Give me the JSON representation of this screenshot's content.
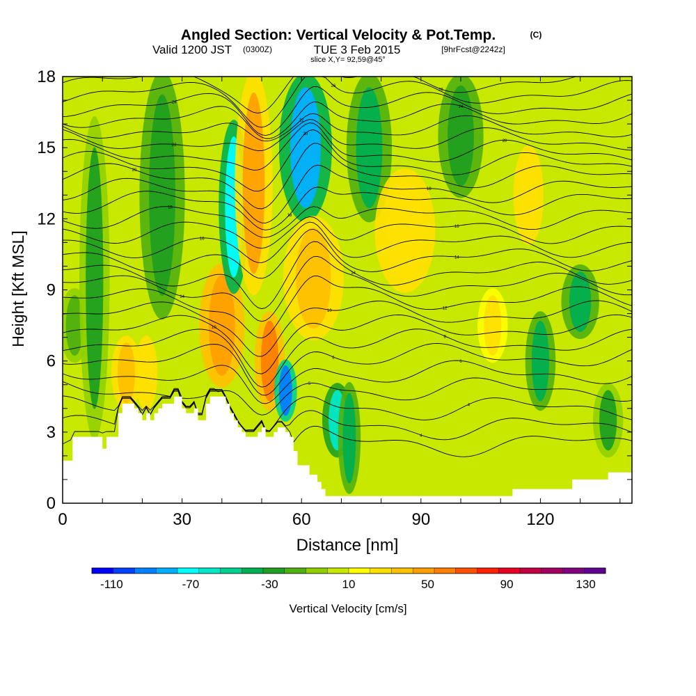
{
  "chart_data": {
    "type": "heatmap",
    "title": "Angled Section: Vertical Velocity & Pot.Temp.",
    "title_unit": "(C)",
    "subtitle_pre": "Valid 1200 JST",
    "subtitle_zulu": "(0300Z)",
    "subtitle_date": "TUE 3 Feb 2015",
    "subtitle_fcst": "[9hrFcst@2242z]",
    "slice_label": "slice X,Y= 92,59@45°",
    "xlabel": "Distance [nm]",
    "ylabel": "Height [Kft MSL]",
    "xlim": [
      0,
      143
    ],
    "ylim": [
      0,
      18
    ],
    "x_ticks": [
      0,
      30,
      60,
      90,
      120
    ],
    "y_ticks": [
      0,
      3,
      6,
      9,
      12,
      15,
      18
    ],
    "colorbar": {
      "label": "Vertical Velocity [cm/s]",
      "ticks": [
        -110,
        -70,
        -30,
        10,
        50,
        90,
        130
      ],
      "colors": [
        "#0000ff",
        "#0040ff",
        "#0080ff",
        "#00b0ff",
        "#00ffff",
        "#00e8c8",
        "#00d090",
        "#00b050",
        "#20a020",
        "#50b010",
        "#90d000",
        "#c8e800",
        "#ffff00",
        "#ffe000",
        "#ffc000",
        "#ffa000",
        "#ff8000",
        "#ff5000",
        "#ff2000",
        "#e80020",
        "#c00040",
        "#a00060",
        "#800080",
        "#600090"
      ]
    },
    "velocity_columns": [
      {
        "x": 3,
        "w": 2,
        "v": -20,
        "zmin": 6,
        "zmax": 9
      },
      {
        "x": 8,
        "w": 2,
        "v": -25,
        "zmin": 3,
        "zmax": 16
      },
      {
        "x": 16,
        "w": 2,
        "v": 40,
        "zmin": 4,
        "zmax": 7
      },
      {
        "x": 21,
        "w": 1.5,
        "v": 30,
        "zmin": 4,
        "zmax": 7
      },
      {
        "x": 25,
        "w": 3,
        "v": -30,
        "zmin": 8,
        "zmax": 18
      },
      {
        "x": 40,
        "w": 3,
        "v": 50,
        "zmin": 5,
        "zmax": 10
      },
      {
        "x": 43,
        "w": 2,
        "v": -70,
        "zmin": 9,
        "zmax": 16
      },
      {
        "x": 48,
        "w": 2.5,
        "v": 45,
        "zmin": 9,
        "zmax": 18
      },
      {
        "x": 52,
        "w": 2,
        "v": 55,
        "zmin": 4,
        "zmax": 8
      },
      {
        "x": 56,
        "w": 1.5,
        "v": -90,
        "zmin": 3.5,
        "zmax": 6
      },
      {
        "x": 61,
        "w": 3.5,
        "v": -80,
        "zmin": 12,
        "zmax": 18
      },
      {
        "x": 63,
        "w": 4,
        "v": 40,
        "zmin": 7,
        "zmax": 12
      },
      {
        "x": 69,
        "w": 2,
        "v": -60,
        "zmin": 2,
        "zmax": 5
      },
      {
        "x": 72,
        "w": 1.5,
        "v": -40,
        "zmin": 0.5,
        "zmax": 5
      },
      {
        "x": 77,
        "w": 3,
        "v": -35,
        "zmin": 12,
        "zmax": 18
      },
      {
        "x": 86,
        "w": 4,
        "v": 30,
        "zmin": 9,
        "zmax": 14
      },
      {
        "x": 100,
        "w": 3,
        "v": -30,
        "zmin": 13,
        "zmax": 18
      },
      {
        "x": 108,
        "w": 2,
        "v": 25,
        "zmin": 6,
        "zmax": 9
      },
      {
        "x": 117,
        "w": 2,
        "v": 30,
        "zmin": 11,
        "zmax": 15
      },
      {
        "x": 120,
        "w": 2,
        "v": -40,
        "zmin": 4,
        "zmax": 8
      },
      {
        "x": 130,
        "w": 2.5,
        "v": -35,
        "zmin": 7,
        "zmax": 10
      },
      {
        "x": 137,
        "w": 2,
        "v": -25,
        "zmin": 2,
        "zmax": 5
      }
    ],
    "terrain": [
      [
        0,
        1.8
      ],
      [
        2.5,
        1.8
      ],
      [
        2.5,
        2.8
      ],
      [
        10,
        2.8
      ],
      [
        10,
        2.3
      ],
      [
        11,
        2.3
      ],
      [
        11,
        2.8
      ],
      [
        14,
        2.8
      ],
      [
        14,
        3.5
      ],
      [
        13.5,
        3.5
      ],
      [
        14,
        3.5
      ],
      [
        14,
        3.8
      ],
      [
        15,
        3.8
      ],
      [
        15,
        4.2
      ],
      [
        18,
        4.2
      ],
      [
        18,
        4.0
      ],
      [
        19,
        4.0
      ],
      [
        19,
        3.8
      ],
      [
        20,
        3.8
      ],
      [
        20,
        3.5
      ],
      [
        21,
        3.5
      ],
      [
        21,
        3.8
      ],
      [
        22,
        3.8
      ],
      [
        22,
        3.5
      ],
      [
        23,
        3.5
      ],
      [
        23,
        3.8
      ],
      [
        24,
        3.8
      ],
      [
        24,
        4.0
      ],
      [
        25,
        4.0
      ],
      [
        25,
        4.2
      ],
      [
        28,
        4.2
      ],
      [
        28,
        4.5
      ],
      [
        30,
        4.5
      ],
      [
        30,
        4.0
      ],
      [
        31,
        4.0
      ],
      [
        31,
        3.8
      ],
      [
        33,
        3.8
      ],
      [
        33,
        4.0
      ],
      [
        34,
        4.0
      ],
      [
        34,
        3.5
      ],
      [
        36,
        3.5
      ],
      [
        36,
        4.2
      ],
      [
        37,
        4.2
      ],
      [
        37,
        4.5
      ],
      [
        41,
        4.5
      ],
      [
        41,
        4.2
      ],
      [
        42,
        4.2
      ],
      [
        42,
        3.8
      ],
      [
        43,
        3.8
      ],
      [
        43,
        3.5
      ],
      [
        44,
        3.5
      ],
      [
        44,
        3.2
      ],
      [
        45,
        3.2
      ],
      [
        45,
        3.0
      ],
      [
        46,
        3.0
      ],
      [
        46,
        2.8
      ],
      [
        49,
        2.8
      ],
      [
        49,
        3.0
      ],
      [
        50,
        3.0
      ],
      [
        50,
        3.2
      ],
      [
        51,
        3.2
      ],
      [
        51,
        2.8
      ],
      [
        53,
        2.8
      ],
      [
        53,
        3.0
      ],
      [
        54,
        3.0
      ],
      [
        54,
        3.2
      ],
      [
        56,
        3.2
      ],
      [
        56,
        3.0
      ],
      [
        57,
        3.0
      ],
      [
        57,
        2.8
      ],
      [
        58,
        2.8
      ],
      [
        58,
        2.2
      ],
      [
        59,
        2.2
      ],
      [
        59,
        1.6
      ],
      [
        62,
        1.6
      ],
      [
        62,
        1.2
      ],
      [
        64,
        1.2
      ],
      [
        64,
        0.9
      ],
      [
        65,
        0.9
      ],
      [
        65,
        0.6
      ],
      [
        66,
        0.6
      ],
      [
        66,
        0.3
      ],
      [
        113,
        0.3
      ],
      [
        113,
        0.6
      ],
      [
        128,
        0.6
      ],
      [
        128,
        1.0
      ],
      [
        137,
        1.0
      ],
      [
        137,
        1.3
      ],
      [
        143,
        1.3
      ],
      [
        143,
        0
      ]
    ],
    "theta_contours": [
      {
        "base": 2.5,
        "label": "",
        "label_x": 0
      },
      {
        "base": 3.2,
        "label": "4",
        "label_x": 90
      },
      {
        "base": 4.0,
        "label": "4",
        "label_x": 102
      },
      {
        "base": 4.8,
        "label": "5",
        "label_x": 62
      },
      {
        "base": 5.5,
        "label": "6",
        "label_x": 100
      },
      {
        "base": 6.2,
        "label": "6",
        "label_x": 68
      },
      {
        "base": 6.8,
        "label": "8",
        "label_x": 96
      },
      {
        "base": 7.4,
        "label": "10",
        "label_x": 38
      },
      {
        "base": 8.0,
        "label": "10",
        "label_x": 67
      },
      {
        "base": 8.6,
        "label": "12",
        "label_x": 96
      },
      {
        "base": 9.2,
        "label": "14",
        "label_x": 30
      },
      {
        "base": 9.7,
        "label": "14",
        "label_x": 73
      },
      {
        "base": 10.3,
        "label": "14",
        "label_x": 99
      },
      {
        "base": 10.9,
        "label": "16",
        "label_x": 35
      },
      {
        "base": 11.5,
        "label": "16",
        "label_x": 99
      },
      {
        "base": 12.1,
        "label": "18",
        "label_x": 27
      },
      {
        "base": 12.7,
        "label": "18",
        "label_x": 57
      },
      {
        "base": 13.2,
        "label": "18",
        "label_x": 92
      },
      {
        "base": 13.8,
        "label": "20",
        "label_x": 18
      },
      {
        "base": 14.3,
        "label": "20",
        "label_x": 61
      },
      {
        "base": 14.8,
        "label": "20",
        "label_x": 111
      },
      {
        "base": 15.3,
        "label": "22",
        "label_x": 28
      },
      {
        "base": 15.8,
        "label": "22",
        "label_x": 60
      },
      {
        "base": 16.3,
        "label": "24",
        "label_x": 100
      },
      {
        "base": 16.8,
        "label": "24",
        "label_x": 28
      },
      {
        "base": 17.3,
        "label": "26",
        "label_x": 68
      },
      {
        "base": 17.8,
        "label": "26",
        "label_x": 95
      }
    ]
  }
}
